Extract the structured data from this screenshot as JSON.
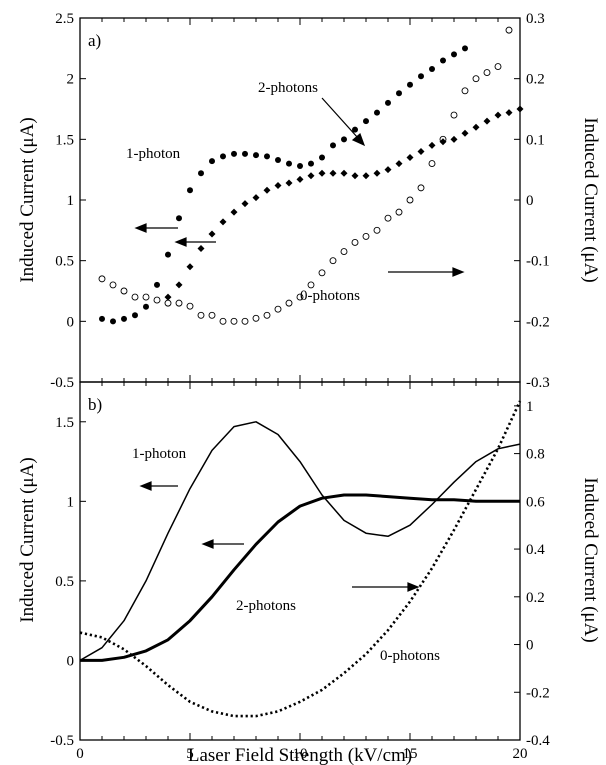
{
  "chart_data": [
    {
      "panel": "a)",
      "type": "scatter",
      "xlim": [
        0,
        20
      ],
      "ylim_left": [
        -0.5,
        2.5
      ],
      "ylim_right": [
        -0.3,
        0.3
      ],
      "ylabel_left": "Induced Current (μA)",
      "ylabel_right": "Induced Current (μA)",
      "ticks_left": [
        "-0.5",
        "0",
        "0.5",
        "1",
        "1.5",
        "2",
        "2.5"
      ],
      "ticks_right": [
        "-0.3",
        "-0.2",
        "-0.1",
        "0",
        "0.1",
        "0.2",
        "0.3"
      ],
      "annotations": {
        "one_photon": "1-photon",
        "two_photons": "2-photons",
        "zero_photons": "0-photons"
      },
      "series": [
        {
          "name": "1-photon",
          "axis": "left",
          "marker": "filled-circle",
          "x": [
            1.0,
            1.5,
            2.0,
            2.5,
            3.0,
            3.5,
            4.0,
            4.5,
            5.0,
            5.5,
            6.0,
            6.5,
            7.0,
            7.5,
            8.0,
            8.5,
            9.0,
            9.5,
            10.0,
            10.5,
            11.0,
            11.5,
            12.0,
            12.5,
            13.0,
            13.5,
            14.0,
            14.5,
            15.0,
            15.5,
            16.0,
            16.5,
            17.0,
            17.5
          ],
          "y": [
            0.02,
            0.0,
            0.02,
            0.05,
            0.12,
            0.3,
            0.55,
            0.85,
            1.08,
            1.22,
            1.32,
            1.36,
            1.38,
            1.38,
            1.37,
            1.36,
            1.33,
            1.3,
            1.28,
            1.3,
            1.35,
            1.45,
            1.5,
            1.58,
            1.65,
            1.72,
            1.8,
            1.88,
            1.95,
            2.02,
            2.08,
            2.15,
            2.2,
            2.25
          ]
        },
        {
          "name": "2-photons",
          "axis": "left",
          "marker": "filled-diamond",
          "x": [
            4.0,
            4.5,
            5.0,
            5.5,
            6.0,
            6.5,
            7.0,
            7.5,
            8.0,
            8.5,
            9.0,
            9.5,
            10.0,
            10.5,
            11.0,
            11.5,
            12.0,
            12.5,
            13.0,
            13.5,
            14.0,
            14.5,
            15.0,
            15.5,
            16.0,
            16.5,
            17.0,
            17.5,
            18.0,
            18.5,
            19.0,
            19.5,
            20.0
          ],
          "y": [
            0.2,
            0.3,
            0.45,
            0.6,
            0.72,
            0.82,
            0.9,
            0.97,
            1.02,
            1.08,
            1.12,
            1.14,
            1.17,
            1.2,
            1.22,
            1.22,
            1.22,
            1.2,
            1.2,
            1.22,
            1.25,
            1.3,
            1.35,
            1.4,
            1.45,
            1.48,
            1.5,
            1.55,
            1.6,
            1.65,
            1.7,
            1.72,
            1.75
          ]
        },
        {
          "name": "0-photons",
          "axis": "right",
          "marker": "open-circle",
          "x": [
            1.0,
            1.5,
            2.0,
            2.5,
            3.0,
            3.5,
            4.0,
            4.5,
            5.0,
            5.5,
            6.0,
            6.5,
            7.0,
            7.5,
            8.0,
            8.5,
            9.0,
            9.5,
            10.0,
            10.5,
            11.0,
            11.5,
            12.0,
            12.5,
            13.0,
            13.5,
            14.0,
            14.5,
            15.0,
            15.5,
            16.0,
            16.5,
            17.0,
            17.5,
            18.0,
            18.5,
            19.0,
            19.5
          ],
          "y": [
            -0.13,
            -0.14,
            -0.15,
            -0.16,
            -0.16,
            -0.165,
            -0.17,
            -0.17,
            -0.175,
            -0.19,
            -0.19,
            -0.2,
            -0.2,
            -0.2,
            -0.195,
            -0.19,
            -0.18,
            -0.17,
            -0.16,
            -0.14,
            -0.12,
            -0.1,
            -0.085,
            -0.07,
            -0.06,
            -0.05,
            -0.03,
            -0.02,
            0.0,
            0.02,
            0.06,
            0.1,
            0.14,
            0.18,
            0.2,
            0.21,
            0.22,
            0.28
          ]
        }
      ]
    },
    {
      "panel": "b)",
      "type": "line",
      "xlim": [
        0,
        20
      ],
      "ylim_left": [
        -0.5,
        1.75
      ],
      "ylim_right": [
        -0.4,
        1.1
      ],
      "xlabel": "Laser Field Strength (kV/cm)",
      "ylabel_left": "Induced Current (μA)",
      "ylabel_right": "Induced Current (μA)",
      "ticks_x": [
        "0",
        "5",
        "10",
        "15",
        "20"
      ],
      "ticks_left": [
        "-0.5",
        "0",
        "0.5",
        "1",
        "1.5"
      ],
      "ticks_right": [
        "-0.4",
        "-0.2",
        "0",
        "0.2",
        "0.4",
        "0.6",
        "0.8",
        "1"
      ],
      "annotations": {
        "one_photon": "1-photon",
        "two_photons": "2-photons",
        "zero_photons": "0-photons"
      },
      "series": [
        {
          "name": "1-photon",
          "axis": "left",
          "style": "thin-solid",
          "x": [
            0,
            1,
            2,
            3,
            4,
            5,
            6,
            7,
            8,
            9,
            10,
            11,
            12,
            13,
            14,
            15,
            16,
            17,
            18,
            19,
            20
          ],
          "y": [
            0.0,
            0.08,
            0.25,
            0.5,
            0.8,
            1.08,
            1.32,
            1.47,
            1.5,
            1.42,
            1.25,
            1.04,
            0.88,
            0.8,
            0.78,
            0.85,
            0.98,
            1.12,
            1.25,
            1.33,
            1.36
          ]
        },
        {
          "name": "2-photons",
          "axis": "left",
          "style": "thick-solid",
          "x": [
            0,
            1,
            2,
            3,
            4,
            5,
            6,
            7,
            8,
            9,
            10,
            11,
            12,
            13,
            14,
            15,
            16,
            17,
            18,
            19,
            20
          ],
          "y": [
            0.0,
            0.0,
            0.02,
            0.06,
            0.13,
            0.25,
            0.4,
            0.57,
            0.73,
            0.87,
            0.97,
            1.02,
            1.04,
            1.04,
            1.03,
            1.02,
            1.01,
            1.01,
            1.0,
            1.0,
            1.0
          ]
        },
        {
          "name": "0-photons",
          "axis": "right",
          "style": "dotted",
          "x": [
            0,
            1,
            2,
            3,
            4,
            5,
            6,
            7,
            8,
            9,
            10,
            11,
            12,
            13,
            14,
            15,
            16,
            17,
            18,
            19,
            20
          ],
          "y": [
            0.05,
            0.03,
            -0.02,
            -0.09,
            -0.17,
            -0.24,
            -0.28,
            -0.3,
            -0.3,
            -0.28,
            -0.24,
            -0.19,
            -0.12,
            -0.04,
            0.06,
            0.18,
            0.32,
            0.48,
            0.65,
            0.82,
            1.02
          ]
        }
      ]
    }
  ]
}
